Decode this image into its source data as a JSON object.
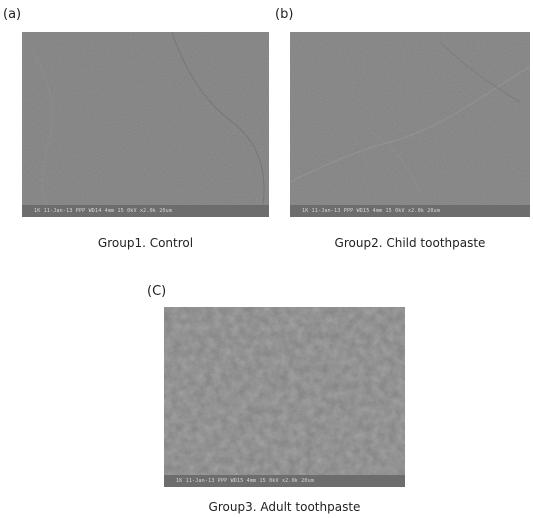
{
  "panels": [
    {
      "letter": "(a)",
      "caption": "Group1. Control",
      "scale_text": "1K    11-Jan-13    PPP    WD14 4mm 15 0kV x2.0k  20um"
    },
    {
      "letter": "(b)",
      "caption": "Group2. Child toothpaste",
      "scale_text": "1K    11-Jan-13    PPP    WD15 4mm 15 0kV x2.0k  20um"
    },
    {
      "letter": "(C)",
      "caption": "Group3. Adult toothpaste",
      "scale_text": "1K    11-Jan-13    PPP    WD15 4mm 15 0kV x2.0k  20um"
    }
  ],
  "colors": {
    "sem_base_a": "#7c7c7c",
    "sem_base_b": "#7e7e7e",
    "sem_base_c": "#767676"
  }
}
